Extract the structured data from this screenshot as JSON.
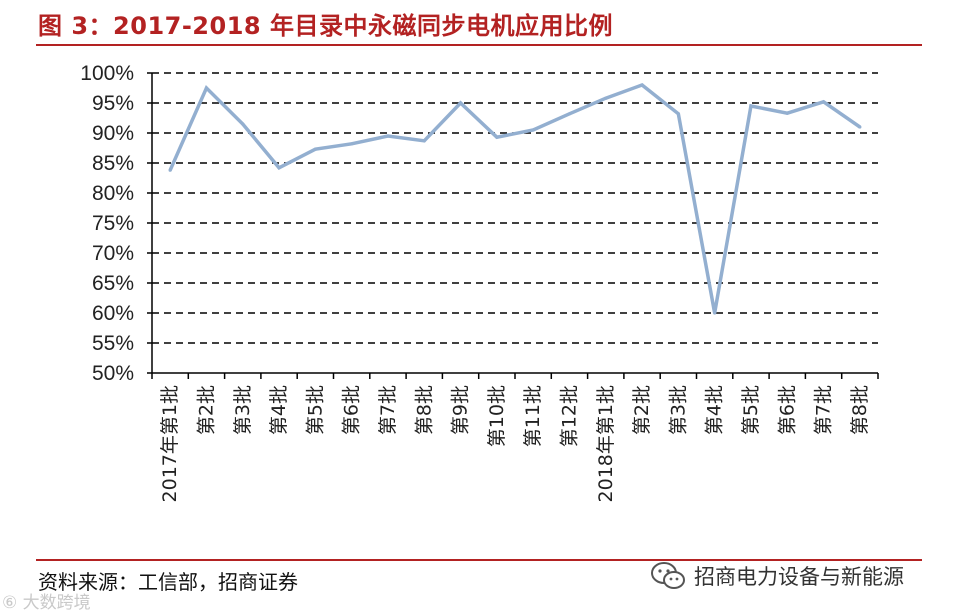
{
  "header": {
    "title": "图 3：2017-2018 年目录中永磁同步电机应用比例"
  },
  "footer": {
    "source": "资料来源：工信部，招商证券",
    "watermark_text": "招商电力设备与新能源",
    "corner_mark": "⑥ 大数跨境"
  },
  "colors": {
    "accent": "#b32222",
    "line": "#93afd0",
    "grid": "#000000"
  },
  "chart_data": {
    "type": "line",
    "title": "2017-2018 年目录中永磁同步电机应用比例",
    "xlabel": "",
    "ylabel": "",
    "ylim": [
      50,
      100
    ],
    "y_ticks": [
      "100%",
      "95%",
      "90%",
      "85%",
      "80%",
      "75%",
      "70%",
      "65%",
      "60%",
      "55%",
      "50%"
    ],
    "grid": "horizontal dashed",
    "categories": [
      "2017年第1批",
      "第2批",
      "第3批",
      "第4批",
      "第5批",
      "第6批",
      "第7批",
      "第8批",
      "第9批",
      "第10批",
      "第11批",
      "第12批",
      "2018年第1批",
      "第2批",
      "第3批",
      "第4批",
      "第5批",
      "第6批",
      "第7批",
      "第8批"
    ],
    "series": [
      {
        "name": "永磁同步电机应用比例",
        "values": [
          83.8,
          97.5,
          91.5,
          84.2,
          87.3,
          88.2,
          89.5,
          88.7,
          95.0,
          89.3,
          90.5,
          93.2,
          95.8,
          98.0,
          93.2,
          60.0,
          94.5,
          93.3,
          95.2,
          91.0
        ]
      }
    ]
  }
}
